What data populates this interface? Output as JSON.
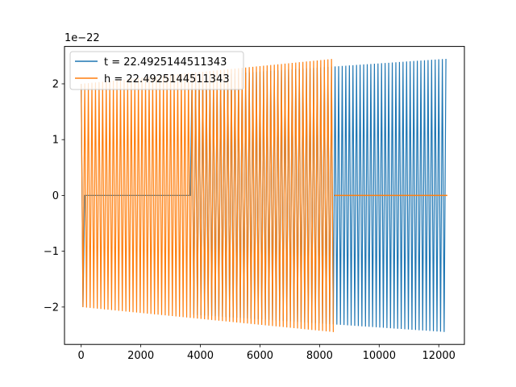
{
  "chart_data": {
    "type": "line",
    "title": "",
    "xlabel": "",
    "ylabel": "",
    "y_scale_label": "1e−22",
    "xlim": [
      -560,
      12860
    ],
    "ylim": [
      -2.67,
      2.67
    ],
    "xticks": [
      0,
      2000,
      4000,
      6000,
      8000,
      10000,
      12000
    ],
    "xtick_labels": [
      "0",
      "2000",
      "4000",
      "6000",
      "8000",
      "10000",
      "12000"
    ],
    "yticks": [
      -2,
      -1,
      0,
      1,
      2
    ],
    "ytick_labels": [
      "−2",
      "−1",
      "0",
      "1",
      "2"
    ],
    "grid": false,
    "legend_position": "top-left",
    "series": [
      {
        "name": "t = 22.4925144511343",
        "color": "#1f77b4",
        "x_start": 0,
        "x_end": 12288,
        "x_gap": [
          0,
          3700
        ],
        "amplitude_start": 2.0,
        "amplitude_end": 2.45,
        "x_step": 120
      },
      {
        "name": "h = 22.4925144511343",
        "color": "#ff7f0e",
        "x_start": 0,
        "x_end": 8500,
        "x_flat_end": 12288,
        "amplitude_start": 2.0,
        "amplitude_end": 2.45,
        "x_step": 120
      }
    ]
  }
}
